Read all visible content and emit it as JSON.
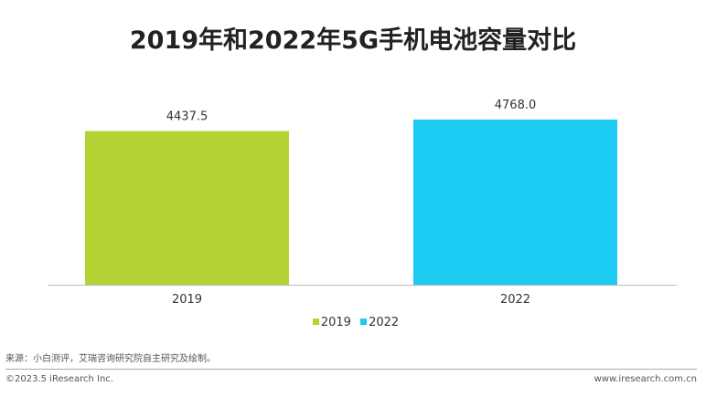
{
  "chart_data": {
    "type": "bar",
    "title": "2019年和2022年5G手机电池容量对比",
    "categories": [
      "2019",
      "2022"
    ],
    "values": [
      4437.5,
      4768.0
    ],
    "value_labels": [
      "4437.5",
      "4768.0"
    ],
    "colors": [
      "#b5d334",
      "#1ccbf1"
    ],
    "ylim": [
      0,
      4768
    ],
    "grid": false,
    "legend": {
      "placement": "bottom",
      "entries": [
        "2019",
        "2022"
      ]
    }
  },
  "footer": {
    "source": "来源：小白测评，艾瑞咨询研究院自主研究及绘制。",
    "copyright": "©2023.5 iResearch Inc.",
    "website": "www.iresearch.com.cn"
  }
}
